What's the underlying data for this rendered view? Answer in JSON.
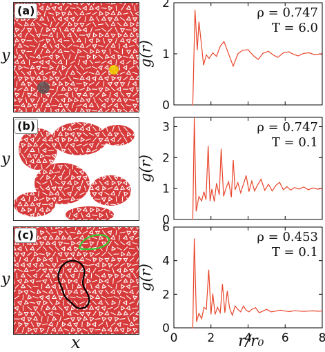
{
  "panels": [
    {
      "tag": "(a)",
      "y_label": "y"
    },
    {
      "tag": "(b)",
      "y_label": "y"
    },
    {
      "tag": "(c)",
      "y_label": "y"
    }
  ],
  "snapshot_x_label": "x",
  "colors": {
    "particles": "#d63a3a",
    "bonds": "#ffffff",
    "curve": "#e8452a",
    "highlight_yellow": "#f2d600",
    "highlight_gray": "#555555",
    "loop_green": "#33cc33",
    "loop_black": "#000000"
  },
  "chart_data": [
    {
      "type": "line",
      "ylabel": "g(r)",
      "xlabel": "",
      "annotations": [
        "ρ = 0.747",
        "T = 6.0"
      ],
      "xlim": [
        0,
        8
      ],
      "ylim": [
        0,
        2
      ],
      "yticks": [
        0,
        1,
        2
      ],
      "xticks": [
        0,
        2,
        4,
        6,
        8
      ],
      "show_xticklabels": false,
      "x": [
        0.97,
        1.02,
        1.14,
        1.26,
        1.35,
        1.48,
        1.6,
        1.75,
        1.9,
        2.1,
        2.3,
        2.5,
        2.7,
        3.0,
        3.2,
        3.45,
        3.7,
        4.0,
        4.3,
        4.55,
        4.8,
        5.1,
        5.35,
        5.6,
        5.9,
        6.2,
        6.45,
        6.7,
        7.0,
        7.3,
        7.6,
        7.9,
        8.0
      ],
      "y": [
        0,
        0,
        1.86,
        1.07,
        1.63,
        1.2,
        0.78,
        0.98,
        0.91,
        1.02,
        0.95,
        1.15,
        1.24,
        0.95,
        0.76,
        1.0,
        1.07,
        1.08,
        0.96,
        0.89,
        1.01,
        1.05,
        0.98,
        0.93,
        1.02,
        1.04,
        0.99,
        0.96,
        1.01,
        1.02,
        0.98,
        1.0,
        0.98
      ]
    },
    {
      "type": "line",
      "ylabel": "g(r)",
      "xlabel": "",
      "annotations": [
        "ρ = 0.747",
        "T = 0.1"
      ],
      "xlim": [
        0,
        8
      ],
      "ylim": [
        0,
        3.3
      ],
      "yticks": [
        0,
        1,
        2,
        3
      ],
      "xticks": [
        0,
        2,
        4,
        6,
        8
      ],
      "show_xticklabels": false,
      "x": [
        0.97,
        1.02,
        1.1,
        1.2,
        1.35,
        1.5,
        1.62,
        1.73,
        1.85,
        1.95,
        2.05,
        2.18,
        2.3,
        2.45,
        2.55,
        2.68,
        2.8,
        2.95,
        3.1,
        3.2,
        3.3,
        3.45,
        3.6,
        3.75,
        3.9,
        4.05,
        4.2,
        4.35,
        4.5,
        4.7,
        4.9,
        5.1,
        5.3,
        5.5,
        5.7,
        5.9,
        6.1,
        6.3,
        6.5,
        6.75,
        7.0,
        7.25,
        7.5,
        7.75,
        8.0
      ],
      "y": [
        0,
        0,
        3.28,
        0.26,
        0.74,
        0.6,
        0.9,
        0.64,
        2.38,
        0.6,
        0.98,
        0.58,
        1.17,
        0.8,
        2.28,
        0.75,
        1.0,
        1.22,
        0.72,
        1.92,
        0.96,
        1.19,
        0.86,
        1.14,
        1.42,
        0.9,
        1.24,
        0.92,
        1.1,
        1.3,
        0.94,
        1.14,
        0.92,
        1.1,
        1.2,
        0.96,
        1.06,
        0.95,
        1.03,
        0.98,
        1.05,
        0.96,
        1.02,
        0.98,
        1.0
      ]
    },
    {
      "type": "line",
      "ylabel": "g(r)",
      "xlabel": "r/r₀",
      "annotations": [
        "ρ = 0.453",
        "T = 0.1"
      ],
      "xlim": [
        0,
        8
      ],
      "ylim": [
        0,
        6
      ],
      "yticks": [
        0,
        2,
        4,
        6
      ],
      "xticks": [
        0,
        2,
        4,
        6,
        8
      ],
      "xticklabels": [
        "0",
        "2",
        "4",
        "6",
        "8"
      ],
      "show_xticklabels": true,
      "x": [
        0.97,
        1.02,
        1.1,
        1.22,
        1.35,
        1.5,
        1.62,
        1.75,
        1.88,
        2.0,
        2.1,
        2.22,
        2.35,
        2.5,
        2.62,
        2.75,
        2.88,
        3.0,
        3.15,
        3.3,
        3.45,
        3.6,
        3.75,
        3.9,
        4.05,
        4.2,
        4.4,
        4.6,
        4.8,
        5.0,
        5.25,
        5.5,
        5.75,
        6.0,
        6.25,
        6.5,
        6.75,
        7.0,
        7.25,
        7.5,
        7.75,
        8.0
      ],
      "y": [
        0,
        0,
        5.32,
        0.36,
        0.86,
        0.54,
        1.22,
        1.1,
        3.46,
        0.8,
        2.04,
        0.8,
        1.22,
        0.9,
        2.6,
        0.9,
        2.2,
        1.2,
        0.75,
        1.3,
        1.1,
        0.95,
        1.3,
        1.05,
        0.95,
        1.1,
        1.2,
        0.9,
        1.0,
        1.1,
        0.95,
        1.0,
        1.05,
        1.0,
        0.97,
        1.02,
        1.0,
        0.98,
        1.0,
        1.01,
        0.99,
        1.0
      ]
    }
  ]
}
